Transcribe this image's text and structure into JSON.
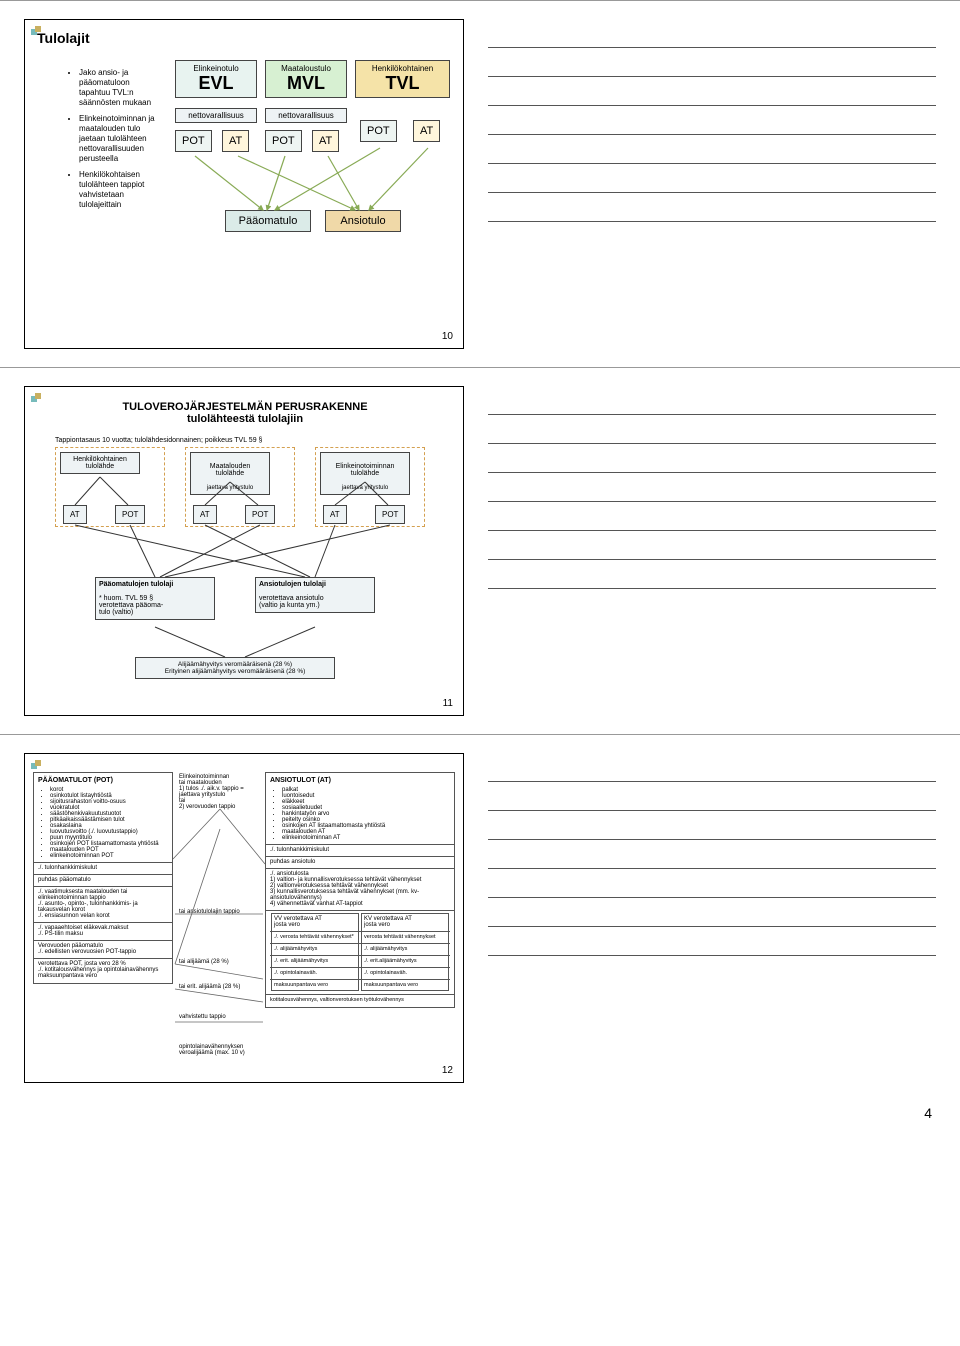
{
  "page_number": "4",
  "slide10": {
    "title": "Tulolajit",
    "bullets": [
      "Jako ansio- ja pääomatuloon tapahtuu TVL:n säännösten mukaan",
      "Elinkeinotoiminnan ja maatalouden tulo jaetaan tulolähteen nettovarallisuuden perusteella",
      "Henkilökohtaisen tulolähteen tappiot vahvistetaan tulolajeittain"
    ],
    "cols": [
      {
        "top": "Elinkeinotulo",
        "big": "EVL",
        "color": "#e8f3f0",
        "netto": "nettovarallisuus"
      },
      {
        "top": "Maataloustulo",
        "big": "MVL",
        "color": "#d7f0d2",
        "netto": "nettovarallisuus"
      },
      {
        "top": "Henkilökohtainen",
        "big": "TVL",
        "color": "#f5e3a8",
        "netto": ""
      }
    ],
    "POT": "POT",
    "AT": "AT",
    "paa": "Pääomatulo",
    "ans": "Ansiotulo",
    "num": "10",
    "colors": {
      "POT_bg": "#eef5f2",
      "AT_bg": "#fff6dc",
      "paa_bg": "#dbebe8",
      "ans_bg": "#f0d9a8"
    }
  },
  "slide11": {
    "heading": "TULOVEROJÄRJESTELMÄN PERUSRAKENNE\ntulolähteestä tulolajiin",
    "sub": "Tappiontasaus 10 vuotta; tulolähdesidonnainen; poikkeus TVL 59 §",
    "srcs": [
      {
        "t": "Henkilökohtainen\ntulolähde"
      },
      {
        "t": "Maatalouden\ntulolähde",
        "j": "jaettava yritystulo"
      },
      {
        "t": "Elinkeinotoiminnan\ntulolähde",
        "j": "jaettava yritystulo"
      }
    ],
    "AT": "AT",
    "POT": "POT",
    "paa": {
      "t": "Pääomatulojen tulolaji",
      "h": "* huom. TVL 59 §",
      "v": "verotettava  pääoma-\ntulo (valtio)"
    },
    "ans": {
      "t": "Ansiotulojen tulolaji",
      "v": "verotettava ansiotulo\n(valtio ja kunta ym.)"
    },
    "hyv": "Alijäämähyvitys veromääräisenä (28 %)\nErityinen alijäämähyvitys veromääräisenä (28 %)",
    "num": "11",
    "colors": {
      "box_bg": "#eef3f5",
      "tag_bg": "#eef5f2"
    }
  },
  "slide12": {
    "num": "12",
    "pot": {
      "heading": "PÄÄOMATULOT (POT)",
      "items": [
        "korot",
        "osinkotulot listayhtiöstä",
        "sijoitusrahaston voitto-osuus",
        "vuokratulot",
        "säästöhenkivakuutustuotot",
        "pitkäaikaissäästämisen tulot",
        "osakaslaina",
        "luovutusvoitto (./. luovutustappio)",
        "puun myyntitulo",
        "osinkojen POT listaamattomasta yhtiöstä",
        "maatalouden POT",
        "elinkeinotoiminnan POT"
      ],
      "rows": [
        "./. tulonhankkimiskulut",
        "puhdas pääomatulo",
        "./. vaatimuksesta maatalouden tai elinkeinotoiminnan tappio\n./. asunto-, opinto-, tulonhankkimis- ja takausvelan korot\n./. ensiasunnon velan korot",
        "./. vapaaehtoiset eläkevak.maksut\n./. PS-tilin maksu",
        "Verovuoden pääomatulo\n./. edellisten verovuosien POT-tappio",
        "verotettava POT, josta vero 28 %\n./. kotitalousvähennys ja opintolainavähennys\nmaksuunpantava vero"
      ]
    },
    "mid": {
      "top": "Elinkeinotoiminnan\ntai maatalouden\n1) tulos ./. aik.v. tappio =\njaettava yritystulo\ntai\n2) verovuoden tappio",
      "lines": [
        "tai ansiotulolajin tappio",
        "tai alijäämä (28 %)",
        "tai erit. alijäämä (28 %)",
        "vahvistettu tappio",
        "opintolainavähennyksen\nveroalijäämä (max. 10 v)"
      ]
    },
    "at": {
      "heading": "ANSIOTULOT (AT)",
      "items": [
        "palkat",
        "luontoisedut",
        "eläkkeet",
        "sosiaalietuudet",
        "hankintatyön arvo",
        "peitelty osinko",
        "osinkojen AT listaamattomasta yhtiöstä",
        "maatalouden AT",
        "elinkeinotoiminnan AT"
      ],
      "rows": [
        "./. tulonhankkimiskulut",
        "puhdas ansiotulo",
        "./. ansiotulosta\n1) valtion- ja kunnallisverotuksessa tehtävät vähennykset\n2) valtionverotuksessa tehtävät vähennykset\n3) kunnallisverotuksessa tehtävät vähennykset (mm. kv-ansiotulovähennys)\n4) vähennettävät vanhat AT-tappiot"
      ],
      "split": [
        {
          "h": "VV verotettava AT\njosta vero",
          "lines": [
            "./. verosta tehtävät vähennykset*",
            "./. alijäämähyvitys",
            "./. erit. alijäämähyvitys",
            "./. opintolainaväh.",
            "maksuunpantava vero"
          ]
        },
        {
          "h": "KV verotettava AT\njosta vero",
          "lines": [
            "verosta tehtävät vähennykset",
            "./. alijäämähyvitys",
            "./. erit.alijäämähyvitys",
            "./. opintolainaväh.",
            "maksuunpantava vero"
          ]
        }
      ],
      "foot": "kotitalousvähennys, valtionverotuksen työtulovähennys"
    }
  }
}
